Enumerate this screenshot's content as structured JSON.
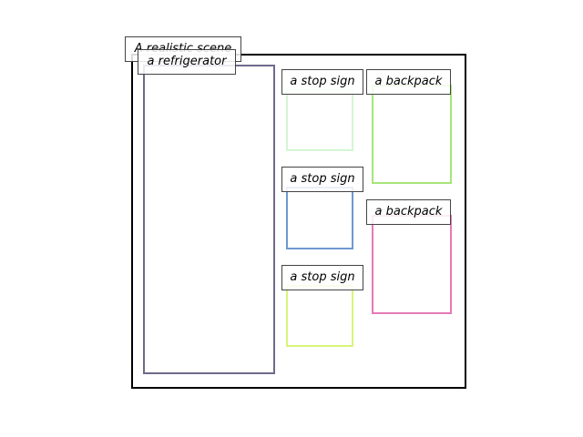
{
  "scene": {
    "title": "A realistic scene"
  },
  "objects": [
    {
      "label": "a refrigerator",
      "color": "#6e6a8a"
    },
    {
      "label": "a stop sign",
      "color": "#d4f5d4"
    },
    {
      "label": "a stop sign",
      "color": "#6f98d0"
    },
    {
      "label": "a stop sign",
      "color": "#d6f57a"
    },
    {
      "label": "a backpack",
      "color": "#a6e57a"
    },
    {
      "label": "a backpack",
      "color": "#e57ab5"
    }
  ]
}
